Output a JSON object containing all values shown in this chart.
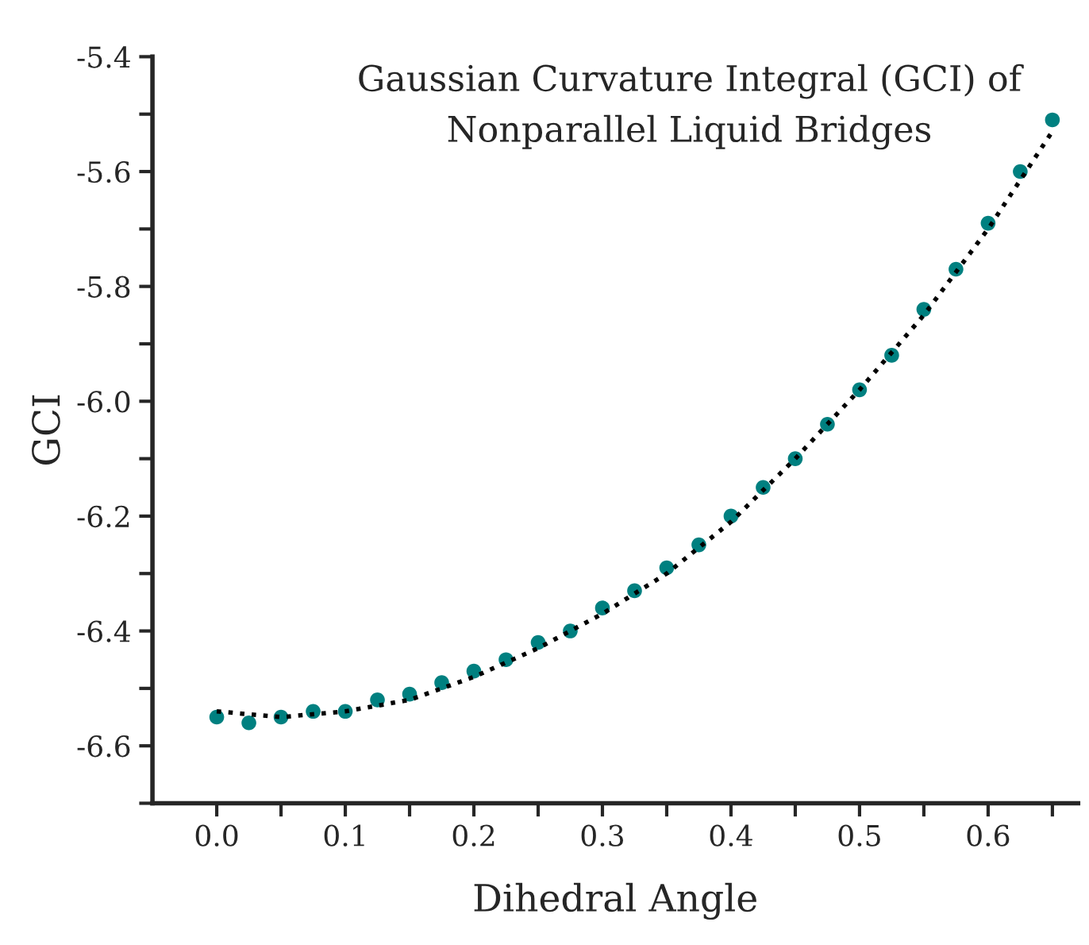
{
  "chart_data": {
    "type": "scatter",
    "title": "Gaussian Curvature Integral (GCI) of\nNonparallel Liquid Bridges",
    "xlabel": "Dihedral Angle",
    "ylabel": "GCI",
    "x": [
      0.0,
      0.025,
      0.05,
      0.075,
      0.1,
      0.125,
      0.15,
      0.175,
      0.2,
      0.225,
      0.25,
      0.275,
      0.3,
      0.325,
      0.35,
      0.375,
      0.4,
      0.425,
      0.45,
      0.475,
      0.5,
      0.525,
      0.55,
      0.575,
      0.6,
      0.625,
      0.65
    ],
    "series": [
      {
        "type": "scatter",
        "color": "#008080",
        "marker": "circle",
        "values": [
          -6.55,
          -6.56,
          -6.55,
          -6.54,
          -6.54,
          -6.52,
          -6.51,
          -6.49,
          -6.47,
          -6.45,
          -6.42,
          -6.4,
          -6.36,
          -6.33,
          -6.29,
          -6.25,
          -6.2,
          -6.15,
          -6.1,
          -6.04,
          -5.98,
          -5.92,
          -5.84,
          -5.77,
          -5.69,
          -5.6,
          -5.51
        ]
      },
      {
        "type": "line",
        "color": "#000000",
        "line_style": "dotted",
        "x": [
          0.0,
          0.05,
          0.1,
          0.15,
          0.2,
          0.25,
          0.3,
          0.35,
          0.4,
          0.45,
          0.5,
          0.55,
          0.6,
          0.65
        ],
        "values": [
          -6.54,
          -6.55,
          -6.54,
          -6.52,
          -6.48,
          -6.43,
          -6.37,
          -6.3,
          -6.21,
          -6.1,
          -5.98,
          -5.85,
          -5.7,
          -5.53
        ]
      }
    ],
    "xlim": [
      -0.05,
      0.67
    ],
    "ylim": [
      -6.7,
      -5.4
    ],
    "xticks": [
      {
        "value": 0.0,
        "label": "0.0"
      },
      {
        "value": 0.05,
        "label": null
      },
      {
        "value": 0.1,
        "label": "0.1"
      },
      {
        "value": 0.15,
        "label": null
      },
      {
        "value": 0.2,
        "label": "0.2"
      },
      {
        "value": 0.25,
        "label": null
      },
      {
        "value": 0.3,
        "label": "0.3"
      },
      {
        "value": 0.35,
        "label": null
      },
      {
        "value": 0.4,
        "label": "0.4"
      },
      {
        "value": 0.45,
        "label": null
      },
      {
        "value": 0.5,
        "label": "0.5"
      },
      {
        "value": 0.55,
        "label": null
      },
      {
        "value": 0.6,
        "label": "0.6"
      },
      {
        "value": 0.65,
        "label": null
      }
    ],
    "yticks": [
      {
        "value": -6.7,
        "label": null
      },
      {
        "value": -6.6,
        "label": "-6.6"
      },
      {
        "value": -6.5,
        "label": null
      },
      {
        "value": -6.4,
        "label": "-6.4"
      },
      {
        "value": -6.3,
        "label": null
      },
      {
        "value": -6.2,
        "label": "-6.2"
      },
      {
        "value": -6.1,
        "label": null
      },
      {
        "value": -6.0,
        "label": "-6.0"
      },
      {
        "value": -5.9,
        "label": null
      },
      {
        "value": -5.8,
        "label": "-5.8"
      },
      {
        "value": -5.7,
        "label": null
      },
      {
        "value": -5.6,
        "label": "-5.6"
      },
      {
        "value": -5.5,
        "label": null
      },
      {
        "value": -5.4,
        "label": "-5.4"
      }
    ],
    "grid": false,
    "legend": false
  }
}
